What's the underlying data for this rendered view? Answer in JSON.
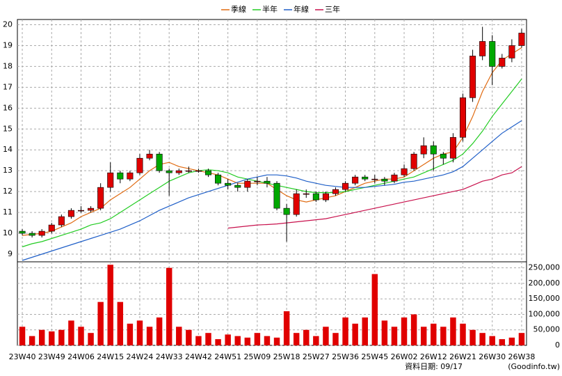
{
  "chart_data": {
    "type": "candlestick",
    "categories": [
      "23W40",
      null,
      null,
      "23W49",
      null,
      null,
      "24W06",
      null,
      null,
      "24W15",
      null,
      null,
      "24W24",
      null,
      null,
      "24W33",
      null,
      null,
      "24W42",
      null,
      null,
      "24W51",
      null,
      null,
      "25W09",
      null,
      null,
      "25W18",
      null,
      null,
      "25W27",
      null,
      null,
      "25W36",
      null,
      null,
      "25W45",
      null,
      null,
      "26W02",
      null,
      null,
      "26W12",
      null,
      null,
      "26W21",
      null,
      null,
      "26W30",
      null,
      null,
      "26W38"
    ],
    "open": [
      10.1,
      10.0,
      9.9,
      10.1,
      10.4,
      10.8,
      11.1,
      11.1,
      11.2,
      12.2,
      12.9,
      12.6,
      12.9,
      13.6,
      13.8,
      13.0,
      12.9,
      13.0,
      13.0,
      13.0,
      12.8,
      12.4,
      12.3,
      12.2,
      12.5,
      12.5,
      12.4,
      11.2,
      10.9,
      11.9,
      11.9,
      11.6,
      11.9,
      12.1,
      12.4,
      12.7,
      12.6,
      12.6,
      12.5,
      12.8,
      13.1,
      13.8,
      14.2,
      13.8,
      13.6,
      14.6,
      16.5,
      18.5,
      19.2,
      18.0,
      18.4,
      19.0
    ],
    "high": [
      10.2,
      10.1,
      10.2,
      10.5,
      10.9,
      11.2,
      11.3,
      11.3,
      12.4,
      13.4,
      13.0,
      13.0,
      13.8,
      14.0,
      13.9,
      13.1,
      13.1,
      13.2,
      13.1,
      13.1,
      12.9,
      12.6,
      12.4,
      12.6,
      12.7,
      12.7,
      12.5,
      11.4,
      12.1,
      12.1,
      12.0,
      12.0,
      12.2,
      12.5,
      12.8,
      12.8,
      12.8,
      12.7,
      12.9,
      13.3,
      13.9,
      14.6,
      14.4,
      13.9,
      14.8,
      16.7,
      18.8,
      19.9,
      19.5,
      18.6,
      19.3,
      19.8
    ],
    "low": [
      9.9,
      9.8,
      9.8,
      10.0,
      10.3,
      10.7,
      11.0,
      11.0,
      11.1,
      12.0,
      12.4,
      12.5,
      12.8,
      13.5,
      12.9,
      11.8,
      12.8,
      12.9,
      12.9,
      12.7,
      12.3,
      12.1,
      12.0,
      12.0,
      12.3,
      12.2,
      11.1,
      9.6,
      10.8,
      11.7,
      11.5,
      11.5,
      11.8,
      12.0,
      12.3,
      12.5,
      12.4,
      12.3,
      12.4,
      12.7,
      13.0,
      13.6,
      13.0,
      13.3,
      13.4,
      14.4,
      16.3,
      18.3,
      17.1,
      17.9,
      18.2,
      18.9
    ],
    "close": [
      10.0,
      9.9,
      10.1,
      10.4,
      10.8,
      11.1,
      11.1,
      11.2,
      12.2,
      12.9,
      12.6,
      12.9,
      13.6,
      13.8,
      13.0,
      12.9,
      13.0,
      13.0,
      13.0,
      12.8,
      12.4,
      12.3,
      12.2,
      12.5,
      12.5,
      12.4,
      11.2,
      10.9,
      11.9,
      11.9,
      11.6,
      11.9,
      12.1,
      12.4,
      12.7,
      12.6,
      12.6,
      12.5,
      12.8,
      13.1,
      13.8,
      14.2,
      13.8,
      13.6,
      14.6,
      16.5,
      18.5,
      19.2,
      18.0,
      18.4,
      19.0,
      19.6
    ],
    "up_color": "#e00000",
    "down_color": "#00a800",
    "series": [
      {
        "name": "季線",
        "color": "#e06a10",
        "values": [
          9.9,
          9.95,
          10.0,
          10.1,
          10.3,
          10.5,
          10.8,
          11.0,
          11.2,
          11.6,
          11.9,
          12.2,
          12.6,
          13.0,
          13.3,
          13.4,
          13.2,
          13.1,
          13.0,
          12.9,
          12.8,
          12.6,
          12.4,
          12.4,
          12.4,
          12.4,
          12.1,
          11.8,
          11.6,
          11.5,
          11.6,
          11.7,
          11.8,
          12.0,
          12.2,
          12.4,
          12.5,
          12.6,
          12.6,
          12.7,
          13.0,
          13.3,
          13.6,
          13.8,
          13.9,
          14.6,
          15.6,
          16.8,
          17.7,
          18.3,
          18.6,
          18.9
        ]
      },
      {
        "name": "半年",
        "color": "#22cc22",
        "values": [
          9.35,
          9.5,
          9.6,
          9.75,
          9.9,
          10.05,
          10.2,
          10.4,
          10.5,
          10.7,
          11.0,
          11.3,
          11.6,
          11.9,
          12.2,
          12.5,
          12.7,
          12.9,
          13.0,
          13.05,
          13.0,
          12.9,
          12.7,
          12.6,
          12.5,
          12.4,
          12.3,
          12.2,
          12.1,
          12.0,
          11.95,
          11.95,
          11.95,
          12.0,
          12.1,
          12.2,
          12.3,
          12.4,
          12.5,
          12.6,
          12.7,
          12.9,
          13.1,
          13.3,
          13.5,
          13.8,
          14.3,
          14.9,
          15.6,
          16.2,
          16.8,
          17.4
        ]
      },
      {
        "name": "年線",
        "color": "#1f5fc8",
        "values": [
          8.7,
          8.85,
          9.0,
          9.15,
          9.3,
          9.45,
          9.6,
          9.75,
          9.9,
          10.05,
          10.2,
          10.4,
          10.6,
          10.85,
          11.1,
          11.3,
          11.5,
          11.7,
          11.85,
          12.0,
          12.15,
          12.3,
          12.45,
          12.6,
          12.7,
          12.8,
          12.8,
          12.75,
          12.65,
          12.5,
          12.4,
          12.3,
          12.25,
          12.2,
          12.2,
          12.2,
          12.25,
          12.3,
          12.35,
          12.45,
          12.5,
          12.6,
          12.7,
          12.8,
          12.95,
          13.2,
          13.6,
          14.0,
          14.4,
          14.8,
          15.1,
          15.4
        ]
      },
      {
        "name": "三年",
        "color": "#c8104c",
        "values": [
          null,
          null,
          null,
          null,
          null,
          null,
          null,
          null,
          null,
          null,
          null,
          null,
          null,
          null,
          null,
          null,
          null,
          null,
          null,
          null,
          null,
          10.25,
          10.3,
          10.35,
          10.4,
          10.42,
          10.45,
          10.5,
          10.55,
          10.6,
          10.65,
          10.7,
          10.8,
          10.9,
          11.0,
          11.1,
          11.2,
          11.3,
          11.4,
          11.5,
          11.6,
          11.7,
          11.8,
          11.9,
          12.0,
          12.1,
          12.3,
          12.5,
          12.6,
          12.8,
          12.9,
          13.2
        ]
      }
    ],
    "volume": {
      "color": "#e00000",
      "axis": "y2",
      "values": [
        60000,
        30000,
        50000,
        45000,
        50000,
        80000,
        60000,
        40000,
        140000,
        260000,
        140000,
        70000,
        80000,
        60000,
        90000,
        250000,
        60000,
        50000,
        30000,
        40000,
        20000,
        35000,
        30000,
        25000,
        40000,
        30000,
        25000,
        110000,
        40000,
        50000,
        30000,
        60000,
        40000,
        90000,
        70000,
        90000,
        230000,
        80000,
        60000,
        90000,
        100000,
        60000,
        70000,
        60000,
        90000,
        70000,
        50000,
        40000,
        30000,
        20000,
        25000,
        40000
      ]
    },
    "ylim": [
      8.7,
      20.25
    ],
    "yticks": [
      9,
      10,
      11,
      12,
      13,
      14,
      15,
      16,
      17,
      18,
      19,
      20
    ],
    "y2lim": [
      0,
      265000
    ],
    "y2ticks": [
      0,
      {
        "value": 50000,
        "label": "50,000"
      },
      {
        "value": 100000,
        "label": "100,000"
      },
      {
        "value": 150000,
        "label": "150,000"
      },
      {
        "value": 200000,
        "label": "200,000"
      },
      {
        "value": 250000,
        "label": "250,000"
      }
    ],
    "grid": true,
    "legend": "top",
    "footer_date": "資料日期: 09/17",
    "footer_source": "(Goodinfo.tw)"
  }
}
